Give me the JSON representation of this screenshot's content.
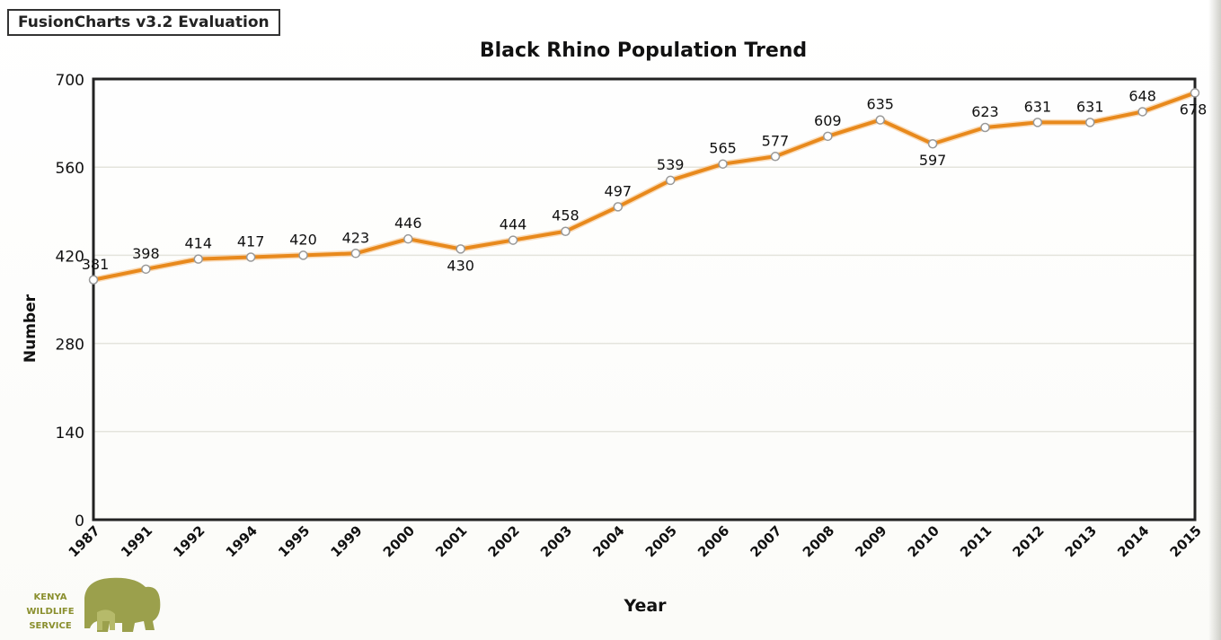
{
  "badge": "FusionCharts v3.2 Evaluation",
  "logo": {
    "lines": [
      "KENYA",
      "WILDLIFE",
      "SERVICE"
    ],
    "color": "#8a8f2e"
  },
  "colors": {
    "line": "#e8891c",
    "axis": "#222222",
    "grid": "#e4e4dc"
  },
  "chart_data": {
    "type": "line",
    "title": "Black Rhino Population Trend",
    "xlabel": "Year",
    "ylabel": "Number",
    "ylim": [
      0,
      700
    ],
    "yticks": [
      0,
      140,
      280,
      420,
      560,
      700
    ],
    "grid": true,
    "categories": [
      "1987",
      "1991",
      "1992",
      "1994",
      "1995",
      "1999",
      "2000",
      "2001",
      "2002",
      "2003",
      "2004",
      "2005",
      "2006",
      "2007",
      "2008",
      "2009",
      "2010",
      "2011",
      "2012",
      "2013",
      "2014",
      "2015"
    ],
    "values": [
      381,
      398,
      414,
      417,
      420,
      423,
      446,
      430,
      444,
      458,
      497,
      539,
      565,
      577,
      609,
      635,
      597,
      623,
      631,
      631,
      648,
      678
    ],
    "labels": [
      "381",
      "398",
      "414",
      "417",
      "420",
      "423",
      "446",
      "430",
      "444",
      "458",
      "497",
      "539",
      "565",
      "577",
      "609",
      "635",
      "597",
      "623",
      "631",
      "631",
      "648",
      "678"
    ]
  }
}
